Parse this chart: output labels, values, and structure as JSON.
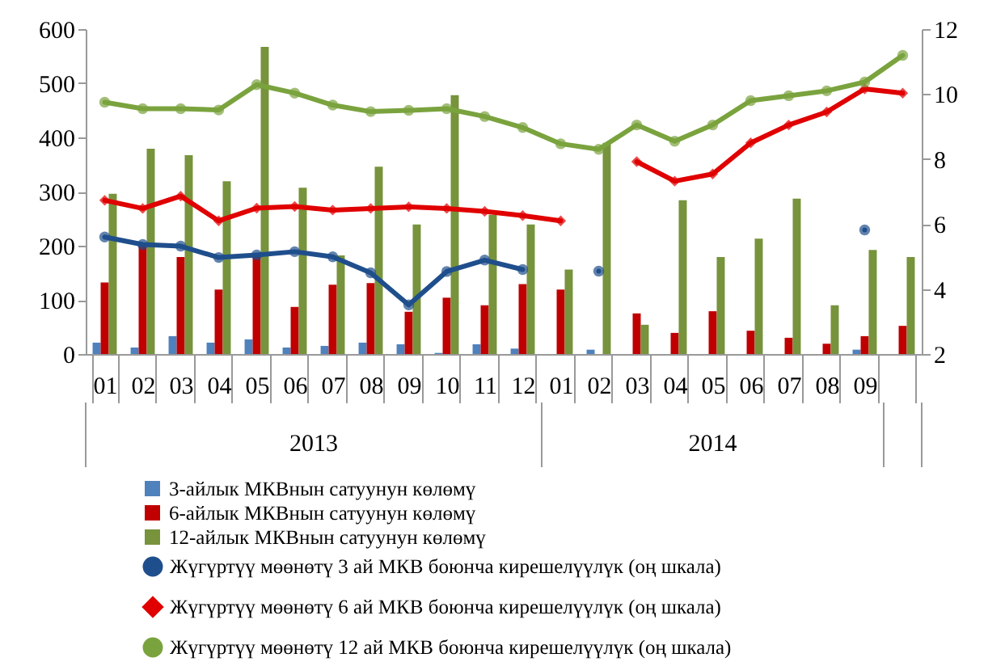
{
  "chart_data": {
    "type": "bar",
    "categories": [
      "01",
      "02",
      "03",
      "04",
      "05",
      "06",
      "07",
      "08",
      "09",
      "10",
      "11",
      "12",
      "01",
      "02",
      "03",
      "04",
      "05",
      "06",
      "07",
      "08",
      "09",
      null
    ],
    "annotations": [
      "2013",
      "2014"
    ],
    "series": [
      {
        "name": "3-айлык МКВнын сатуунун көлөмү",
        "color": "#4f81bd",
        "values": [
          21,
          12,
          33,
          21,
          27,
          12,
          15,
          21,
          18,
          2,
          18,
          10,
          null,
          8,
          null,
          null,
          null,
          null,
          null,
          null,
          8,
          null
        ]
      },
      {
        "name": "6-айлык МКВнын сатуунун көлөмү",
        "color": "#c00000",
        "values": [
          132,
          201,
          179,
          119,
          179,
          87,
          128,
          131,
          78,
          104,
          90,
          129,
          119,
          null,
          75,
          39,
          79,
          43,
          30,
          19,
          33,
          52
        ]
      },
      {
        "name": "12-айлык МКВнын сатуунун көлөмү",
        "color": "#77933c",
        "values": [
          296,
          379,
          367,
          319,
          567,
          307,
          182,
          346,
          239,
          478,
          257,
          239,
          156,
          390,
          54,
          284,
          179,
          213,
          287,
          90,
          192,
          179
        ]
      },
      {
        "name": "Жүгүртүү мөөнөтү 3 ай МКВ боюнча кирешелүүлүк (оң шкала)",
        "type": "line",
        "axis": "y2",
        "color": "#1f4e8c",
        "marker": "circle",
        "values": [
          5.6,
          5.37,
          5.32,
          4.97,
          5.05,
          5.15,
          4.99,
          4.5,
          3.51,
          4.54,
          4.89,
          4.6,
          null,
          4.55,
          null,
          null,
          null,
          null,
          null,
          null,
          5.82,
          null
        ]
      },
      {
        "name": "Жүгүртүү мөөнөтү 6 ай МКВ боюнча кирешелүүлүк (оң шкала)",
        "type": "line",
        "axis": "y2",
        "color": "#e00000",
        "marker": "diamond",
        "values": [
          6.73,
          6.48,
          6.86,
          6.1,
          6.49,
          6.54,
          6.43,
          6.48,
          6.53,
          6.48,
          6.39,
          6.26,
          6.1,
          null,
          7.92,
          7.32,
          7.54,
          8.5,
          9.05,
          9.45,
          10.16,
          10.03
        ]
      },
      {
        "name": "Жүгүртүү мөөнөтү 12 ай МКВ боюнча кирешелүүлүк (оң шкала)",
        "type": "line",
        "axis": "y2",
        "color": "#7aa33e",
        "marker": "circle",
        "values": [
          9.75,
          9.55,
          9.55,
          9.51,
          10.29,
          10.03,
          9.66,
          9.46,
          9.5,
          9.55,
          9.31,
          8.97,
          8.47,
          8.3,
          9.05,
          8.55,
          9.05,
          9.8,
          9.95,
          10.1,
          10.37,
          11.19
        ]
      }
    ],
    "ylim": [
      0,
      600
    ],
    "yticks": [
      0,
      100,
      200,
      300,
      400,
      500,
      600
    ],
    "y2lim": [
      2,
      12
    ],
    "y2ticks": [
      2,
      4,
      6,
      8,
      10,
      12
    ],
    "legend": "bottom",
    "line_style": "solid"
  }
}
